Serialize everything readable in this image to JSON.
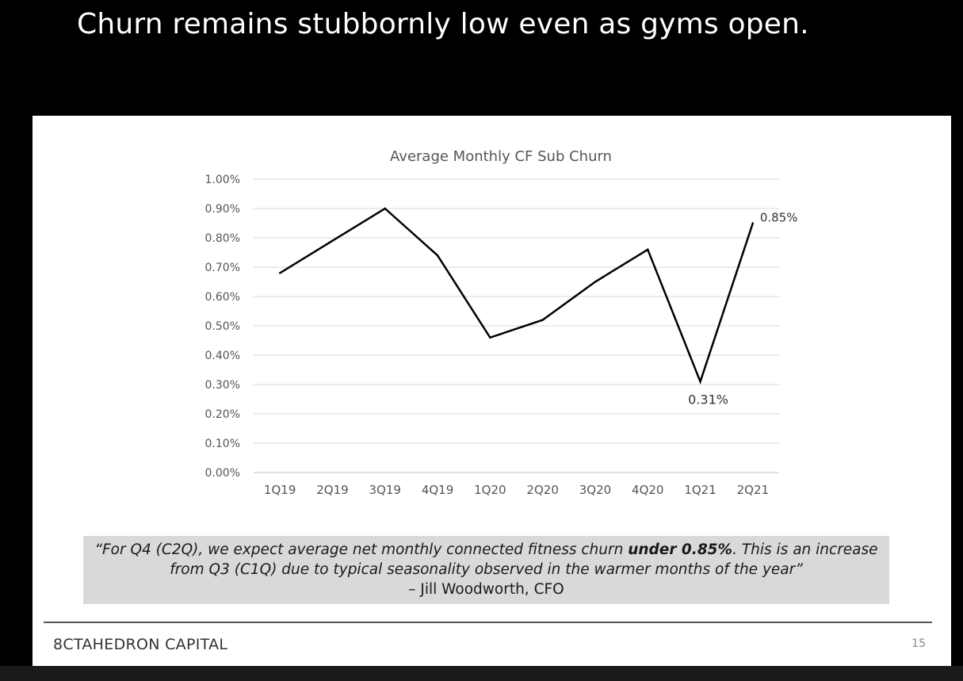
{
  "headline": "Churn remains stubbornly low even as gyms open.",
  "chart_data": {
    "type": "line",
    "title": "Average Monthly CF Sub Churn",
    "categories": [
      "1Q19",
      "2Q19",
      "3Q19",
      "4Q19",
      "1Q20",
      "2Q20",
      "3Q20",
      "4Q20",
      "1Q21",
      "2Q21"
    ],
    "series": [
      {
        "values": [
          0.68,
          0.79,
          0.9,
          0.74,
          0.46,
          0.52,
          0.65,
          0.76,
          0.31,
          0.85
        ]
      }
    ],
    "y_ticks": [
      "0.00%",
      "0.10%",
      "0.20%",
      "0.30%",
      "0.40%",
      "0.50%",
      "0.60%",
      "0.70%",
      "0.80%",
      "0.90%",
      "1.00%"
    ],
    "ylim": [
      0,
      1.0
    ],
    "y_unit": "%",
    "grid": true,
    "data_labels": [
      {
        "index": 8,
        "text": "0.31%"
      },
      {
        "index": 9,
        "text": "0.85%"
      }
    ],
    "line_color": "#000000",
    "grid_color": "#d9d9d9"
  },
  "quote": {
    "line1_pre": "“For Q4 (C2Q), we expect average net monthly connected fitness churn ",
    "line1_bold": "under 0.85%",
    "line1_post": ". This is an increase",
    "line2": "from Q3 (C1Q) due to typical seasonality observed in the warmer months of the year”",
    "attribution": "– Jill Woodworth, CFO"
  },
  "footer": {
    "logo": "8CTAHEDRON CAPITAL",
    "page_number": "15"
  }
}
